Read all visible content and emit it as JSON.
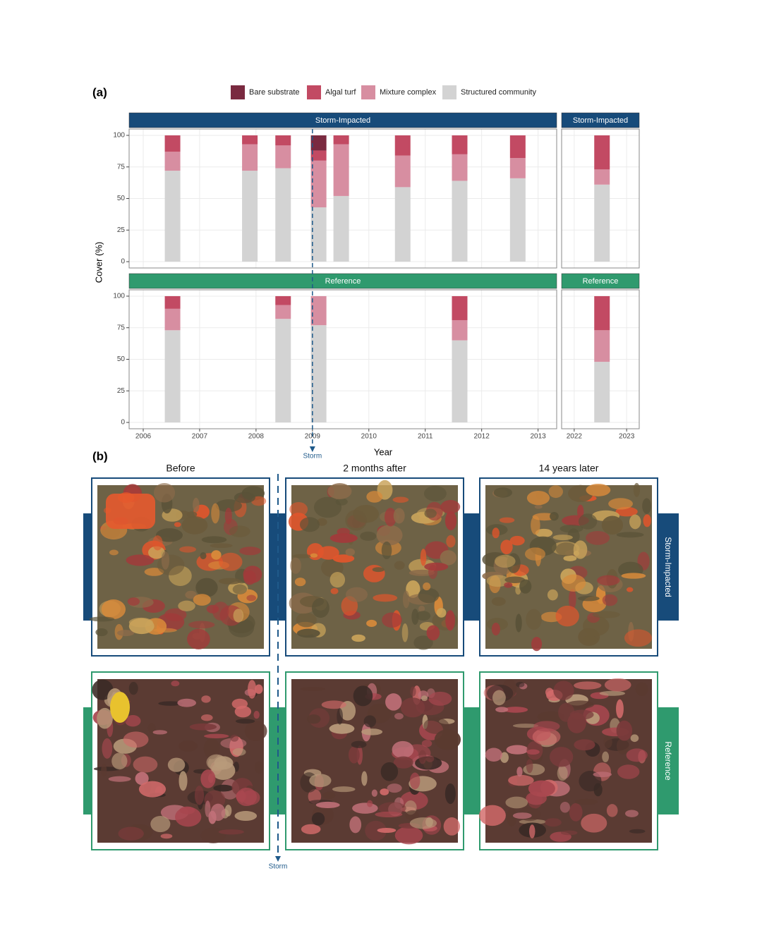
{
  "chart_data": {
    "type": "bar",
    "stacked": true,
    "panel_label": "(a)",
    "ylabel": "Cover (%)",
    "xlabel": "Year",
    "grid": true,
    "legend": [
      {
        "name": "Bare substrate",
        "color": "#7a2a40"
      },
      {
        "name": "Algal turf",
        "color": "#c24a63"
      },
      {
        "name": "Mixture complex",
        "color": "#d78ea1"
      },
      {
        "name": "Structured community",
        "color": "#d3d3d3"
      }
    ],
    "ylim": [
      -5,
      105
    ],
    "yticks": [
      0,
      25,
      50,
      75,
      100
    ],
    "columns": [
      {
        "xlim": [
          2005.75,
          2013.33
        ],
        "xticks": [
          2006,
          2007,
          2008,
          2009,
          2010,
          2011,
          2012,
          2013
        ]
      },
      {
        "xlim": [
          2021.76,
          2023.24
        ],
        "xticks": [
          2022,
          2023
        ]
      }
    ],
    "storm": {
      "x": 2009,
      "label": "Storm"
    },
    "rows": [
      {
        "strip_color": "#174b7a",
        "panels": [
          {
            "strip": "Storm-Impacted",
            "x": [
              2006.52,
              2007.89,
              2008.48,
              2009.11,
              2009.51,
              2010.6,
              2011.61,
              2012.64
            ],
            "series": [
              {
                "values": [
                  0,
                  0,
                  0,
                  12,
                  0,
                  0,
                  0,
                  0
                ]
              },
              {
                "values": [
                  13,
                  7,
                  8,
                  8,
                  7,
                  16,
                  15,
                  18
                ]
              },
              {
                "values": [
                  15,
                  21,
                  18,
                  37,
                  41,
                  25,
                  21,
                  16
                ]
              },
              {
                "values": [
                  72,
                  72,
                  74,
                  43,
                  52,
                  59,
                  64,
                  66
                ]
              }
            ]
          },
          {
            "strip": "Storm-Impacted",
            "x": [
              2022.53
            ],
            "series": [
              {
                "values": [
                  0
                ]
              },
              {
                "values": [
                  27
                ]
              },
              {
                "values": [
                  12
                ]
              },
              {
                "values": [
                  61
                ]
              }
            ]
          }
        ]
      },
      {
        "strip_color": "#2f9a6e",
        "panels": [
          {
            "strip": "Reference",
            "x": [
              2006.52,
              2008.48,
              2009.11,
              2011.61
            ],
            "series": [
              {
                "values": [
                  0,
                  0,
                  0,
                  0
                ]
              },
              {
                "values": [
                  10,
                  7,
                  0,
                  19
                ]
              },
              {
                "values": [
                  17,
                  11,
                  23,
                  16
                ]
              },
              {
                "values": [
                  73,
                  82,
                  77,
                  65
                ]
              }
            ]
          },
          {
            "strip": "Reference",
            "x": [
              2022.53
            ],
            "series": [
              {
                "values": [
                  0
                ]
              },
              {
                "values": [
                  27
                ]
              },
              {
                "values": [
                  25
                ]
              },
              {
                "values": [
                  48
                ]
              }
            ]
          }
        ]
      }
    ]
  },
  "photos": {
    "label": "(b)",
    "columns": [
      "Before",
      "2 months after",
      "14 years later"
    ],
    "rows": [
      "Storm-Impacted",
      "Reference"
    ],
    "storm": "Storm"
  }
}
